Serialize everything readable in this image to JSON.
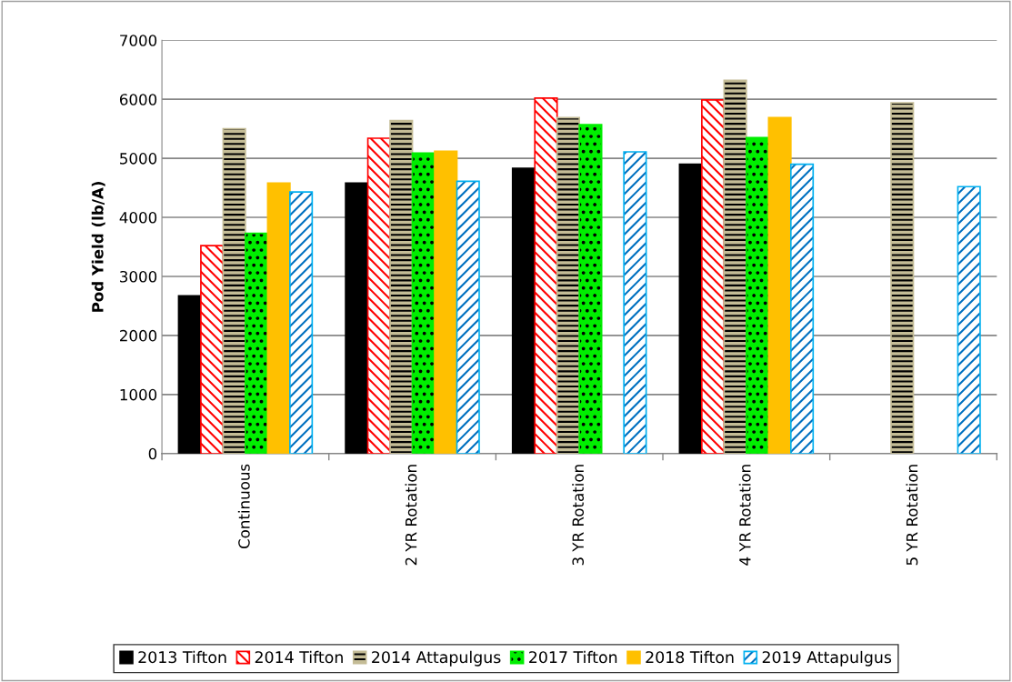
{
  "chart_data": {
    "type": "bar",
    "ylabel": "Pod Yield (lb/A)",
    "categories": [
      "Continuous",
      "2 YR Rotation",
      "3 YR Rotation",
      "4 YR Rotation",
      "5 YR Rotation"
    ],
    "series": [
      {
        "name": "2013 Tifton",
        "color": "#000000",
        "values": [
          2670,
          4580,
          4830,
          4900,
          null
        ]
      },
      {
        "name": "2014 Tifton",
        "color": "#ff0000",
        "values": [
          3520,
          5340,
          6020,
          5990,
          null
        ]
      },
      {
        "name": "2014 Attapulgus",
        "color": "#c4bc96",
        "values": [
          5500,
          5640,
          5690,
          6320,
          5940
        ]
      },
      {
        "name": "2017 Tifton",
        "color": "#00ee00",
        "values": [
          3730,
          5090,
          5570,
          5350,
          null
        ]
      },
      {
        "name": "2018 Tifton",
        "color": "#ffc000",
        "values": [
          4580,
          5120,
          null,
          5690,
          null
        ]
      },
      {
        "name": "2019 Attapulgus",
        "color": "#00b0f0",
        "values": [
          4430,
          4610,
          5110,
          4900,
          4520
        ]
      }
    ],
    "ylim": [
      0,
      7000
    ],
    "yticks": [
      0,
      1000,
      2000,
      3000,
      4000,
      5000,
      6000,
      7000
    ],
    "grid": "y",
    "legend": "bottom"
  }
}
